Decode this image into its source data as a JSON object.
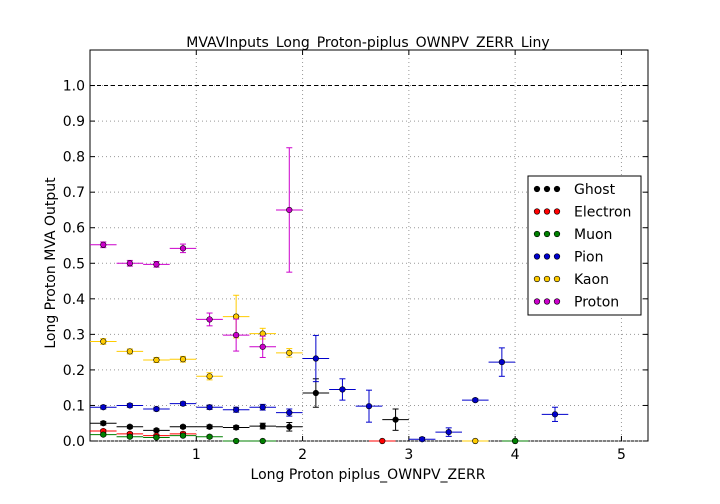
{
  "chart_data": {
    "type": "scatter",
    "title": "MVAVInputs_Long_Proton-piplus_OWNPV_ZERR_Liny",
    "xlabel": "Long Proton piplus_OWNPV_ZERR",
    "ylabel": "Long Proton MVA Output",
    "xlim": [
      0,
      5.25
    ],
    "ylim": [
      0,
      1.1
    ],
    "x_ticks": [
      "1",
      "2",
      "3",
      "4",
      "5"
    ],
    "y_ticks": [
      "0.0",
      "0.1",
      "0.2",
      "0.3",
      "0.4",
      "0.5",
      "0.6",
      "0.7",
      "0.8",
      "0.9",
      "1.0"
    ],
    "grid": true,
    "reference_line_y": 1.0,
    "legend_position": "center-right",
    "series": [
      {
        "name": "Ghost",
        "color": "#000000",
        "points": [
          {
            "x": 0.125,
            "y": 0.05,
            "xerr": 0.125,
            "yerr": 0.005
          },
          {
            "x": 0.375,
            "y": 0.04,
            "xerr": 0.125,
            "yerr": 0.004
          },
          {
            "x": 0.625,
            "y": 0.03,
            "xerr": 0.125,
            "yerr": 0.004
          },
          {
            "x": 0.875,
            "y": 0.04,
            "xerr": 0.125,
            "yerr": 0.004
          },
          {
            "x": 1.125,
            "y": 0.04,
            "xerr": 0.125,
            "yerr": 0.005
          },
          {
            "x": 1.375,
            "y": 0.038,
            "xerr": 0.125,
            "yerr": 0.005
          },
          {
            "x": 1.625,
            "y": 0.042,
            "xerr": 0.125,
            "yerr": 0.008
          },
          {
            "x": 1.875,
            "y": 0.04,
            "xerr": 0.125,
            "yerr": 0.012
          },
          {
            "x": 2.125,
            "y": 0.135,
            "xerr": 0.125,
            "yerr": 0.04
          },
          {
            "x": 2.875,
            "y": 0.06,
            "xerr": 0.125,
            "yerr": 0.03
          },
          {
            "x": 4.0,
            "y": 0.0,
            "xerr": 0.125,
            "yerr": 0.0
          }
        ]
      },
      {
        "name": "Electron",
        "color": "#ff0000",
        "points": [
          {
            "x": 0.125,
            "y": 0.028,
            "xerr": 0.125,
            "yerr": 0.004
          },
          {
            "x": 0.375,
            "y": 0.02,
            "xerr": 0.125,
            "yerr": 0.004
          },
          {
            "x": 0.625,
            "y": 0.015,
            "xerr": 0.125,
            "yerr": 0.004
          },
          {
            "x": 0.875,
            "y": 0.02,
            "xerr": 0.125,
            "yerr": 0.005
          },
          {
            "x": 2.75,
            "y": 0.0,
            "xerr": 0.125,
            "yerr": 0.0
          }
        ]
      },
      {
        "name": "Muon",
        "color": "#008000",
        "points": [
          {
            "x": 0.125,
            "y": 0.018,
            "xerr": 0.125,
            "yerr": 0.003
          },
          {
            "x": 0.375,
            "y": 0.012,
            "xerr": 0.125,
            "yerr": 0.003
          },
          {
            "x": 0.625,
            "y": 0.01,
            "xerr": 0.125,
            "yerr": 0.003
          },
          {
            "x": 0.875,
            "y": 0.015,
            "xerr": 0.125,
            "yerr": 0.003
          },
          {
            "x": 1.125,
            "y": 0.012,
            "xerr": 0.125,
            "yerr": 0.004
          },
          {
            "x": 1.375,
            "y": 0.0,
            "xerr": 0.125,
            "yerr": 0.0
          },
          {
            "x": 1.625,
            "y": 0.0,
            "xerr": 0.125,
            "yerr": 0.0
          },
          {
            "x": 4.0,
            "y": 0.0,
            "xerr": 0.125,
            "yerr": 0.0
          }
        ]
      },
      {
        "name": "Pion",
        "color": "#0000cc",
        "points": [
          {
            "x": 0.125,
            "y": 0.095,
            "xerr": 0.125,
            "yerr": 0.005
          },
          {
            "x": 0.375,
            "y": 0.1,
            "xerr": 0.125,
            "yerr": 0.005
          },
          {
            "x": 0.625,
            "y": 0.09,
            "xerr": 0.125,
            "yerr": 0.005
          },
          {
            "x": 0.875,
            "y": 0.105,
            "xerr": 0.125,
            "yerr": 0.005
          },
          {
            "x": 1.125,
            "y": 0.095,
            "xerr": 0.125,
            "yerr": 0.006
          },
          {
            "x": 1.375,
            "y": 0.088,
            "xerr": 0.125,
            "yerr": 0.007
          },
          {
            "x": 1.625,
            "y": 0.095,
            "xerr": 0.125,
            "yerr": 0.008
          },
          {
            "x": 1.875,
            "y": 0.08,
            "xerr": 0.125,
            "yerr": 0.01
          },
          {
            "x": 2.125,
            "y": 0.232,
            "xerr": 0.125,
            "yerr": 0.065
          },
          {
            "x": 2.375,
            "y": 0.145,
            "xerr": 0.125,
            "yerr": 0.03
          },
          {
            "x": 2.625,
            "y": 0.098,
            "xerr": 0.125,
            "yerr": 0.045
          },
          {
            "x": 3.125,
            "y": 0.005,
            "xerr": 0.125,
            "yerr": 0.005
          },
          {
            "x": 3.375,
            "y": 0.025,
            "xerr": 0.125,
            "yerr": 0.012
          },
          {
            "x": 3.625,
            "y": 0.115,
            "xerr": 0.125,
            "yerr": 0.004
          },
          {
            "x": 3.875,
            "y": 0.222,
            "xerr": 0.125,
            "yerr": 0.04
          },
          {
            "x": 4.375,
            "y": 0.075,
            "xerr": 0.125,
            "yerr": 0.02
          }
        ]
      },
      {
        "name": "Kaon",
        "color": "#ffcc00",
        "points": [
          {
            "x": 0.125,
            "y": 0.28,
            "xerr": 0.125,
            "yerr": 0.008
          },
          {
            "x": 0.375,
            "y": 0.252,
            "xerr": 0.125,
            "yerr": 0.007
          },
          {
            "x": 0.625,
            "y": 0.228,
            "xerr": 0.125,
            "yerr": 0.007
          },
          {
            "x": 0.875,
            "y": 0.23,
            "xerr": 0.125,
            "yerr": 0.008
          },
          {
            "x": 1.125,
            "y": 0.182,
            "xerr": 0.125,
            "yerr": 0.01
          },
          {
            "x": 1.375,
            "y": 0.35,
            "xerr": 0.125,
            "yerr": 0.06
          },
          {
            "x": 1.625,
            "y": 0.302,
            "xerr": 0.125,
            "yerr": 0.015
          },
          {
            "x": 1.875,
            "y": 0.248,
            "xerr": 0.125,
            "yerr": 0.012
          },
          {
            "x": 3.625,
            "y": 0.0,
            "xerr": 0.125,
            "yerr": 0.0
          }
        ]
      },
      {
        "name": "Proton",
        "color": "#cc00cc",
        "points": [
          {
            "x": 0.125,
            "y": 0.552,
            "xerr": 0.125,
            "yerr": 0.008
          },
          {
            "x": 0.375,
            "y": 0.5,
            "xerr": 0.125,
            "yerr": 0.008
          },
          {
            "x": 0.625,
            "y": 0.497,
            "xerr": 0.125,
            "yerr": 0.008
          },
          {
            "x": 0.875,
            "y": 0.542,
            "xerr": 0.125,
            "yerr": 0.012
          },
          {
            "x": 1.125,
            "y": 0.342,
            "xerr": 0.125,
            "yerr": 0.018
          },
          {
            "x": 1.375,
            "y": 0.298,
            "xerr": 0.125,
            "yerr": 0.045
          },
          {
            "x": 1.625,
            "y": 0.265,
            "xerr": 0.125,
            "yerr": 0.03
          },
          {
            "x": 1.875,
            "y": 0.65,
            "xerr": 0.125,
            "yerr": 0.175
          }
        ]
      }
    ]
  }
}
